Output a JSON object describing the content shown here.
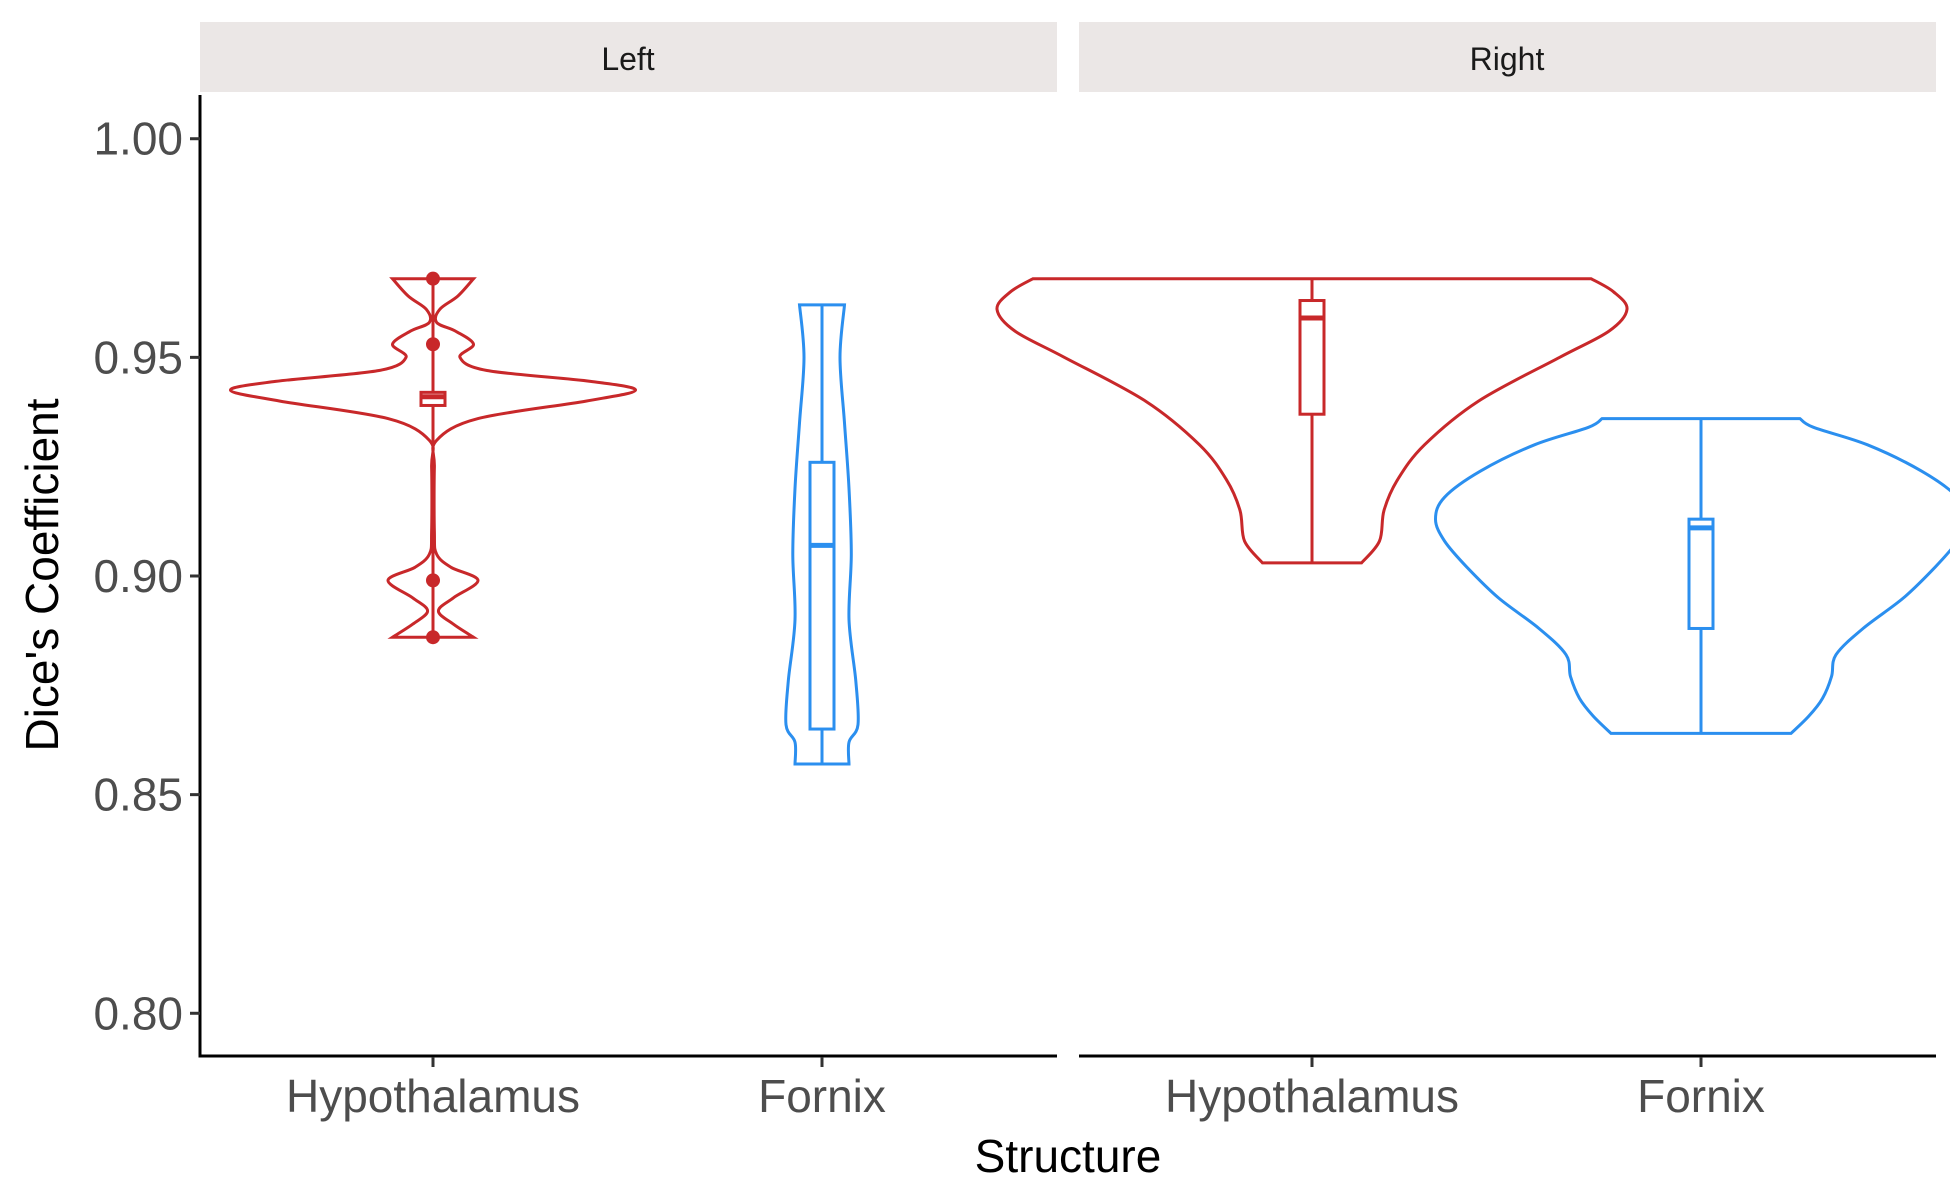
{
  "chart_data": {
    "type": "violin",
    "xlabel": "Structure",
    "ylabel": "Dice's Coefficient",
    "ylim": [
      0.79,
      1.01
    ],
    "yticks": [
      0.8,
      0.85,
      0.9,
      0.95,
      1.0
    ],
    "ytick_labels": [
      "0.80",
      "0.85",
      "0.90",
      "0.95",
      "1.00"
    ],
    "categories": [
      "Hypothalamus",
      "Fornix"
    ],
    "colors": {
      "Hypothalamus": "#c8282a",
      "Fornix": "#2b8fef"
    },
    "grid": false,
    "legend": "none",
    "facets": [
      {
        "label": "Left",
        "groups": [
          {
            "category": "Hypothalamus",
            "box": {
              "q1": 0.939,
              "median": 0.941,
              "q3": 0.942
            },
            "outliers": [
              0.968,
              0.953,
              0.899,
              0.886
            ],
            "profile": [
              [
                0.886,
                0.09
              ],
              [
                0.889,
                0.045
              ],
              [
                0.892,
                0.012
              ],
              [
                0.895,
                0.045
              ],
              [
                0.899,
                0.1
              ],
              [
                0.902,
                0.04
              ],
              [
                0.905,
                0.008
              ],
              [
                0.91,
                0.003
              ],
              [
                0.925,
                0.003
              ],
              [
                0.931,
                0.008
              ],
              [
                0.936,
                0.1
              ],
              [
                0.94,
                0.34
              ],
              [
                0.9425,
                0.45
              ],
              [
                0.9445,
                0.35
              ],
              [
                0.947,
                0.12
              ],
              [
                0.95,
                0.06
              ],
              [
                0.953,
                0.09
              ],
              [
                0.956,
                0.05
              ],
              [
                0.958,
                0.008
              ],
              [
                0.961,
                0.015
              ],
              [
                0.964,
                0.055
              ],
              [
                0.968,
                0.09
              ]
            ]
          },
          {
            "category": "Fornix",
            "box": {
              "q1": 0.865,
              "median": 0.907,
              "q3": 0.926
            },
            "outliers": [],
            "profile": [
              [
                0.857,
                0.06
              ],
              [
                0.862,
                0.06
              ],
              [
                0.866,
                0.08
              ],
              [
                0.876,
                0.075
              ],
              [
                0.89,
                0.06
              ],
              [
                0.905,
                0.065
              ],
              [
                0.92,
                0.06
              ],
              [
                0.935,
                0.05
              ],
              [
                0.95,
                0.04
              ],
              [
                0.962,
                0.05
              ]
            ]
          }
        ]
      },
      {
        "label": "Right",
        "groups": [
          {
            "category": "Hypothalamus",
            "box": {
              "q1": 0.937,
              "median": 0.959,
              "q3": 0.963
            },
            "outliers": [],
            "profile": [
              [
                0.903,
                0.11
              ],
              [
                0.908,
                0.15
              ],
              [
                0.915,
                0.16
              ],
              [
                0.922,
                0.19
              ],
              [
                0.93,
                0.25
              ],
              [
                0.94,
                0.37
              ],
              [
                0.95,
                0.55
              ],
              [
                0.956,
                0.66
              ],
              [
                0.961,
                0.7
              ],
              [
                0.965,
                0.67
              ],
              [
                0.968,
                0.62
              ]
            ]
          },
          {
            "category": "Fornix",
            "box": {
              "q1": 0.888,
              "median": 0.911,
              "q3": 0.913
            },
            "outliers": [],
            "profile": [
              [
                0.864,
                0.2
              ],
              [
                0.868,
                0.24
              ],
              [
                0.872,
                0.27
              ],
              [
                0.877,
                0.29
              ],
              [
                0.882,
                0.3
              ],
              [
                0.888,
                0.36
              ],
              [
                0.895,
                0.45
              ],
              [
                0.902,
                0.52
              ],
              [
                0.908,
                0.57
              ],
              [
                0.913,
                0.59
              ],
              [
                0.918,
                0.57
              ],
              [
                0.924,
                0.49
              ],
              [
                0.93,
                0.37
              ],
              [
                0.934,
                0.25
              ],
              [
                0.936,
                0.22
              ]
            ]
          }
        ]
      }
    ]
  }
}
